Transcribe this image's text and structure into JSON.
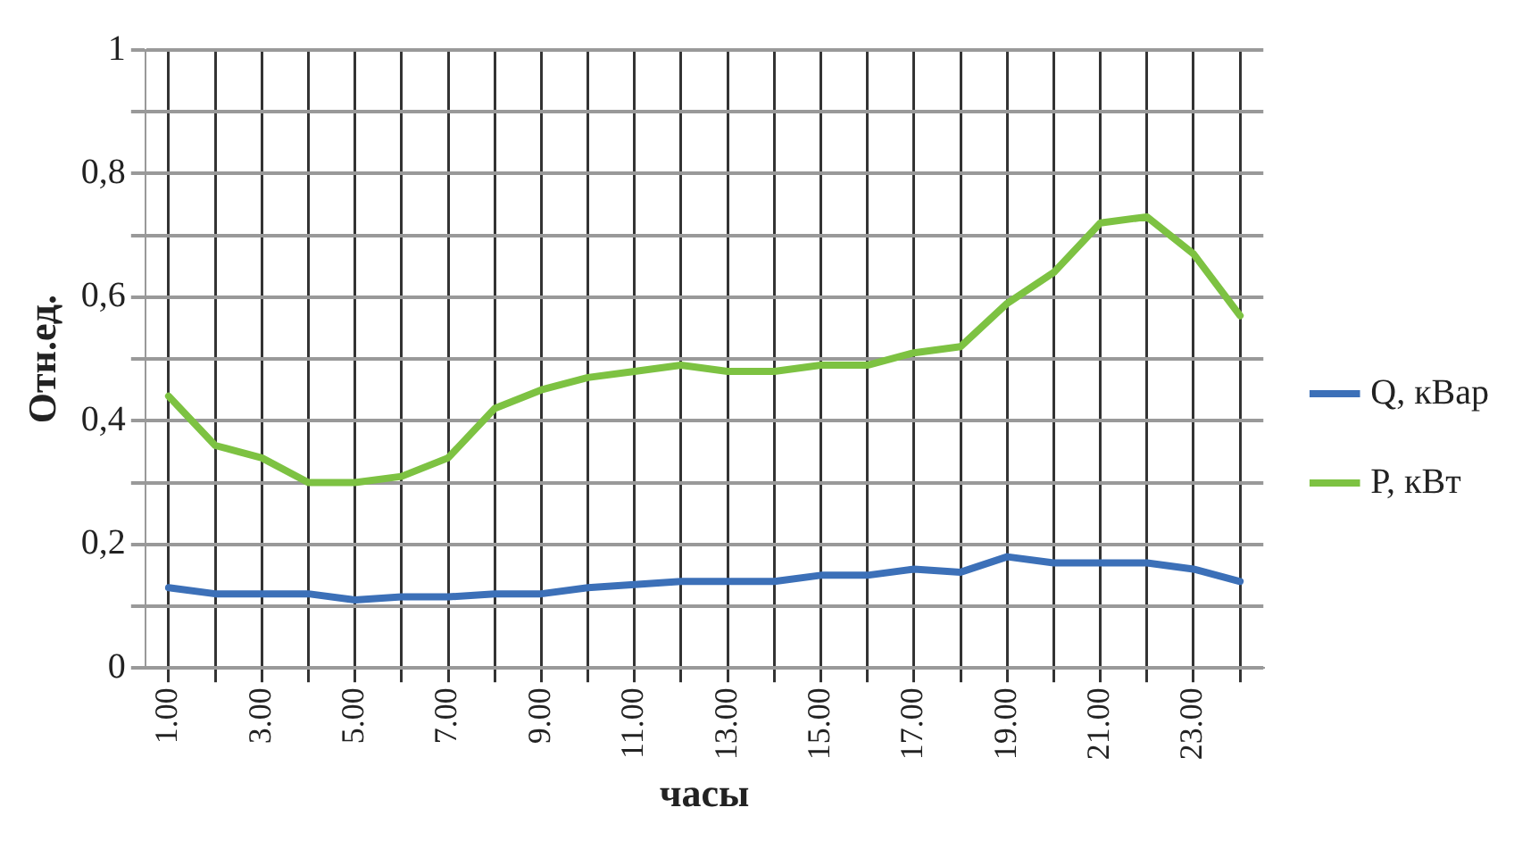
{
  "chart_data": {
    "type": "line",
    "xlabel": "часы",
    "ylabel": "Отн.ед.",
    "categories": [
      "1.00",
      null,
      "3.00",
      null,
      "5.00",
      null,
      "7.00",
      null,
      "9.00",
      null,
      "11.00",
      null,
      "13.00",
      null,
      "15.00",
      null,
      "17.00",
      null,
      "19.00",
      null,
      "21.00",
      null,
      "23.00",
      null
    ],
    "series": [
      {
        "name": "Q, кВар",
        "color": "#3c70b8",
        "values": [
          0.13,
          0.12,
          0.12,
          0.12,
          0.11,
          0.115,
          0.115,
          0.12,
          0.12,
          0.13,
          0.135,
          0.14,
          0.14,
          0.14,
          0.15,
          0.15,
          0.16,
          0.155,
          0.18,
          0.17,
          0.17,
          0.17,
          0.16,
          0.14
        ]
      },
      {
        "name": "P, кВт",
        "color": "#7dc242",
        "values": [
          0.44,
          0.36,
          0.34,
          0.3,
          0.3,
          0.31,
          0.34,
          0.42,
          0.45,
          0.47,
          0.48,
          0.49,
          0.48,
          0.48,
          0.49,
          0.49,
          0.51,
          0.52,
          0.59,
          0.64,
          0.72,
          0.73,
          0.67,
          0.57
        ]
      }
    ],
    "ylim": [
      0,
      1
    ],
    "yticks": [
      0,
      {
        "value": 0.1,
        "label": null
      },
      {
        "value": 0.2,
        "label": "0,2"
      },
      {
        "value": 0.3,
        "label": null
      },
      {
        "value": 0.4,
        "label": "0,4"
      },
      {
        "value": 0.5,
        "label": null
      },
      {
        "value": 0.6,
        "label": "0,6"
      },
      {
        "value": 0.7,
        "label": null
      },
      {
        "value": 0.8,
        "label": "0,8"
      },
      {
        "value": 0.9,
        "label": null
      },
      1
    ],
    "grid": true,
    "legend": "right",
    "marker": "none",
    "line_style": "solid"
  }
}
